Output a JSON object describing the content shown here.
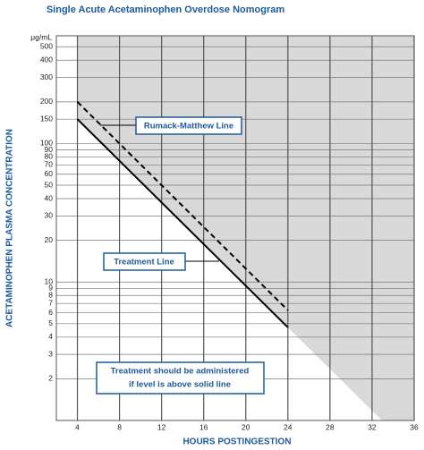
{
  "chart_data": {
    "type": "line",
    "title": "Single Acute Acetaminophen Overdose Nomogram",
    "x_label": "HOURS POSTINGESTION",
    "y_label": "ACETAMINOPHEN PLASMA CONCENTRATION",
    "y_unit": "μg/mL",
    "xlim": [
      2,
      36
    ],
    "xticks": [
      4,
      8,
      12,
      16,
      20,
      24,
      28,
      32,
      36
    ],
    "ylim": [
      1,
      600
    ],
    "y_scale": "log",
    "yticks": [
      500,
      400,
      300,
      200,
      150,
      100,
      90,
      80,
      70,
      60,
      50,
      40,
      30,
      20,
      10,
      9,
      8,
      7,
      6,
      5,
      4,
      3,
      2
    ],
    "grid": true,
    "series": [
      {
        "name": "Rumack-Matthew Line",
        "color": "#000000",
        "dash": true,
        "x": [
          4,
          24
        ],
        "values": [
          200,
          6.25
        ]
      },
      {
        "name": "Treatment Line",
        "color": "#000000",
        "dash": false,
        "x": [
          4,
          24
        ],
        "values": [
          150,
          4.7
        ]
      }
    ],
    "note": [
      "Treatment should be administered",
      "if level is above solid line"
    ]
  }
}
